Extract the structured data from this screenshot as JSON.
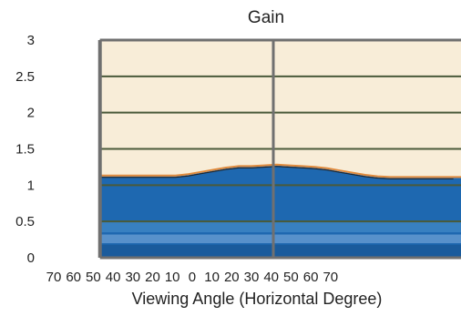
{
  "chart_data": {
    "type": "area",
    "title": "Gain",
    "xlabel": "Viewing Angle (Horizontal Degree)",
    "ylabel": "",
    "y_ticks": [
      "0",
      "0.5",
      "1",
      "1.5",
      "2",
      "2.5",
      "3"
    ],
    "y_tick_values": [
      0,
      0.5,
      1,
      1.5,
      2,
      2.5,
      3
    ],
    "x_tick_labels": [
      "70",
      "60",
      "50",
      "40",
      "30",
      "20",
      "10",
      "0",
      "10",
      "20",
      "30",
      "40",
      "50",
      "60",
      "70"
    ],
    "x_tick_values": [
      -70,
      -60,
      -50,
      -40,
      -30,
      -20,
      -10,
      0,
      10,
      20,
      30,
      40,
      50,
      60,
      70
    ],
    "xlim": [
      -70,
      83
    ],
    "ylim": [
      0,
      3
    ],
    "grid": true,
    "series": [
      {
        "x": [
          -60,
          -50,
          -40,
          -30,
          -25,
          -20,
          -15,
          -10,
          -5,
          0,
          5,
          10,
          15,
          20,
          25,
          30,
          35,
          40,
          45,
          50,
          55,
          60,
          65,
          70,
          80
        ],
        "values": [
          1.12,
          1.12,
          1.12,
          1.12,
          1.14,
          1.17,
          1.2,
          1.23,
          1.25,
          1.25,
          1.26,
          1.27,
          1.26,
          1.25,
          1.24,
          1.22,
          1.19,
          1.16,
          1.13,
          1.11,
          1.1,
          1.1,
          1.1,
          1.1,
          1.1
        ]
      }
    ],
    "colors": {
      "plot_background": "#f8edd8",
      "area_fill": "#1e68b0",
      "curve_line": "#e08a3c",
      "grid_line": "#4a5a3a",
      "frame": "#6f6f6f",
      "divider": "#707070",
      "band_light": "#4f93cf",
      "band_mid": "#7faedd",
      "band_bottom": "#1a5a9a"
    }
  }
}
